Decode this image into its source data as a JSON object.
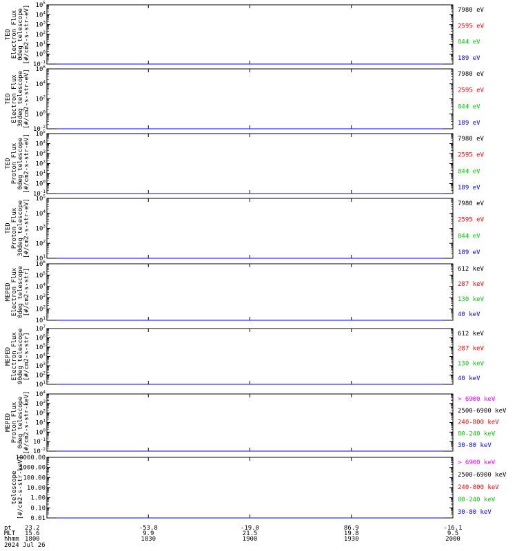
{
  "chart_data": [
    {
      "type": "line",
      "ylabel": [
        "TED",
        "Electron Flux",
        "0deg telescope",
        "[#/cm2-s-str-eV]"
      ],
      "y_scale": "log",
      "y_ticks": [
        "10^-1",
        "10^0",
        "10^1",
        "10^2",
        "10^3",
        "10^4",
        "10^5"
      ],
      "series": [
        {
          "name": "7980 eV",
          "color": "#000000",
          "values": [
            0,
            0,
            0,
            0,
            0,
            0,
            0,
            0,
            0,
            0,
            0,
            0,
            0,
            0,
            0,
            0,
            0,
            0,
            0,
            0
          ]
        },
        {
          "name": "2595 eV",
          "color": "#ff0000",
          "values": [
            0,
            0,
            0,
            0,
            0,
            0,
            0,
            0,
            0,
            0,
            0,
            0,
            0,
            0,
            0,
            0,
            0,
            0,
            0,
            0
          ]
        },
        {
          "name": "844 eV",
          "color": "#00cc00",
          "values": [
            0,
            0,
            0,
            0,
            0,
            0,
            0,
            0,
            0,
            0,
            0,
            0,
            0,
            0,
            0,
            0,
            0,
            0,
            0,
            0
          ]
        },
        {
          "name": "189 eV",
          "color": "#0000ff",
          "values": [
            0,
            0,
            0,
            0,
            0,
            0,
            0,
            0,
            0,
            0,
            0,
            0,
            0,
            0,
            0,
            0,
            0,
            0,
            0,
            0
          ]
        }
      ]
    },
    {
      "type": "line",
      "ylabel": [
        "TED",
        "Electron Flux",
        "30deg telescope",
        "[#/cm2-s-str-eV]"
      ],
      "y_scale": "log",
      "y_ticks": [
        "10^-2",
        "10^0",
        "10^2",
        "10^4",
        "10^6"
      ],
      "series": [
        {
          "name": "7980 eV",
          "color": "#000000",
          "values": [
            0,
            0,
            0,
            0,
            0,
            0,
            0,
            0,
            0,
            0,
            0,
            0,
            0,
            0,
            0,
            0,
            0,
            0,
            0,
            0
          ]
        },
        {
          "name": "2595 eV",
          "color": "#ff0000",
          "values": [
            0,
            0,
            0,
            0,
            0,
            0,
            0,
            0,
            0,
            0,
            0,
            0,
            0,
            0,
            0,
            0,
            0,
            0,
            0,
            0
          ]
        },
        {
          "name": "844 eV",
          "color": "#00cc00",
          "values": [
            0,
            0,
            0,
            0,
            0,
            0,
            0,
            0,
            0,
            0,
            0,
            0,
            0,
            0,
            0,
            0,
            0,
            0,
            0,
            0
          ]
        },
        {
          "name": "189 eV",
          "color": "#0000ff",
          "values": [
            0,
            0,
            0,
            0,
            0,
            0,
            0,
            0,
            0,
            0,
            0,
            0,
            0,
            0,
            0,
            0,
            0,
            0,
            0,
            0
          ]
        }
      ]
    },
    {
      "type": "line",
      "ylabel": [
        "TED",
        "Proton Flux",
        "0deg telescope",
        "[#/cm2-s-str-eV]"
      ],
      "y_scale": "log",
      "y_ticks": [
        "10^-1",
        "10^0",
        "10^1",
        "10^2",
        "10^3",
        "10^4",
        "10^5"
      ],
      "series": [
        {
          "name": "7980 eV",
          "color": "#000000",
          "values": [
            0,
            0,
            0,
            0,
            0,
            0,
            0,
            0,
            0,
            0,
            0,
            0,
            0,
            0,
            0,
            0,
            0,
            0,
            0,
            0
          ]
        },
        {
          "name": "2595 eV",
          "color": "#ff0000",
          "values": [
            0,
            0,
            0,
            0,
            0,
            0,
            0,
            0,
            0,
            0,
            0,
            0,
            0,
            0,
            0,
            0,
            0,
            0,
            0,
            0
          ]
        },
        {
          "name": "844 eV",
          "color": "#00cc00",
          "values": [
            0,
            0,
            0,
            0,
            0,
            0,
            0,
            0,
            0,
            0,
            0,
            0,
            0,
            0,
            0,
            0,
            0,
            0,
            0,
            0
          ]
        },
        {
          "name": "189 eV",
          "color": "#0000ff",
          "values": [
            0,
            0,
            0,
            0,
            0,
            0,
            0,
            0,
            0,
            0,
            0,
            0,
            0,
            0,
            0,
            0,
            0,
            0,
            0,
            0
          ]
        }
      ]
    },
    {
      "type": "line",
      "ylabel": [
        "TED",
        "Proton Flux",
        "30deg telescope",
        "[#/cm2-s-str-eV]"
      ],
      "y_scale": "log",
      "y_ticks": [
        "10^1",
        "10^2",
        "10^3",
        "10^4",
        "10^5"
      ],
      "series": [
        {
          "name": "7980 eV",
          "color": "#000000",
          "values": [
            0,
            0,
            0,
            0,
            0,
            0,
            0,
            0,
            0,
            0,
            0,
            0,
            0,
            0,
            0,
            0,
            0,
            0,
            0,
            0
          ]
        },
        {
          "name": "2595 eV",
          "color": "#ff0000",
          "values": [
            0,
            0,
            0,
            0,
            0,
            0,
            0,
            0,
            0,
            0,
            0,
            0,
            0,
            0,
            0,
            0,
            0,
            0,
            0,
            0
          ]
        },
        {
          "name": "844 eV",
          "color": "#00cc00",
          "values": [
            0,
            0,
            0,
            0,
            0,
            0,
            0,
            0,
            0,
            0,
            0,
            0,
            0,
            0,
            0,
            0,
            0,
            0,
            0,
            0
          ]
        },
        {
          "name": "189 eV",
          "color": "#0000ff",
          "values": [
            0,
            0,
            0,
            0,
            0,
            0,
            0,
            0,
            0,
            0,
            0,
            0,
            0,
            0,
            0,
            0,
            0,
            0,
            0,
            0
          ]
        }
      ]
    },
    {
      "type": "line",
      "ylabel": [
        "MEPED",
        "Electron Flux",
        "0deg telescope",
        "[#/cm2-s-str]"
      ],
      "y_scale": "log",
      "y_ticks": [
        "10^1",
        "10^2",
        "10^3",
        "10^4",
        "10^5",
        "10^6"
      ],
      "series": [
        {
          "name": "612 keV",
          "color": "#000000",
          "values": [
            0,
            0,
            0,
            0,
            0,
            0,
            0,
            0,
            0,
            0,
            0,
            0,
            0,
            0,
            0,
            0,
            0,
            0,
            0,
            0
          ]
        },
        {
          "name": "287 keV",
          "color": "#ff0000",
          "values": [
            0,
            0,
            0,
            0,
            0,
            0,
            0,
            0,
            0,
            0,
            0,
            0,
            0,
            0,
            0,
            0,
            0,
            0,
            0,
            0
          ]
        },
        {
          "name": "130 keV",
          "color": "#00cc00",
          "values": [
            0,
            0,
            0,
            0,
            0,
            0,
            0,
            0,
            0,
            0,
            0,
            0,
            0,
            0,
            0,
            0,
            0,
            0,
            0,
            0
          ]
        },
        {
          "name": "40 keV",
          "color": "#0000ff",
          "values": [
            0,
            0,
            0,
            0,
            0,
            0,
            0,
            0,
            0,
            0,
            0,
            0,
            0,
            0,
            0,
            0,
            0,
            0,
            0,
            0
          ]
        }
      ]
    },
    {
      "type": "line",
      "ylabel": [
        "MEPED",
        "Electron Flux",
        "90deg telescope",
        "[#/cm2-s-str]"
      ],
      "y_scale": "log",
      "y_ticks": [
        "10^1",
        "10^2",
        "10^3",
        "10^4",
        "10^5",
        "10^6",
        "10^7"
      ],
      "series": [
        {
          "name": "612 keV",
          "color": "#000000",
          "values": [
            0,
            0,
            0,
            0,
            0,
            0,
            0,
            0,
            0,
            0,
            0,
            0,
            0,
            0,
            0,
            0,
            0,
            0,
            0,
            0
          ]
        },
        {
          "name": "287 keV",
          "color": "#ff0000",
          "values": [
            0,
            0,
            0,
            0,
            0,
            0,
            0,
            0,
            0,
            0,
            0,
            0,
            0,
            0,
            0,
            0,
            0,
            0,
            0,
            0
          ]
        },
        {
          "name": "130 keV",
          "color": "#00cc00",
          "values": [
            0,
            0,
            0,
            0,
            0,
            0,
            0,
            0,
            0,
            0,
            0,
            0,
            0,
            0,
            0,
            0,
            0,
            0,
            0,
            0
          ]
        },
        {
          "name": "40 keV",
          "color": "#0000ff",
          "values": [
            0,
            0,
            0,
            0,
            0,
            0,
            0,
            0,
            0,
            0,
            0,
            0,
            0,
            0,
            0,
            0,
            0,
            0,
            0,
            0
          ]
        }
      ]
    },
    {
      "type": "line",
      "ylabel": [
        "MEPED",
        "Proton Flux",
        "0deg telescope",
        "[#/cm2-s-str-keV]"
      ],
      "y_scale": "log",
      "y_ticks": [
        "10^-2",
        "10^-1",
        "10^0",
        "10^1",
        "10^2",
        "10^3",
        "10^4"
      ],
      "series": [
        {
          "name": "> 6900 keV",
          "color": "#ff00ff",
          "values": [
            0,
            0,
            0,
            0,
            0,
            0,
            0,
            0,
            0,
            0,
            0,
            0,
            0,
            0,
            0,
            0,
            0,
            0,
            0,
            0
          ]
        },
        {
          "name": "2500-6900 keV",
          "color": "#000000",
          "values": [
            0,
            0,
            0,
            0,
            0,
            0,
            0,
            0,
            0,
            0,
            0,
            0,
            0,
            0,
            0,
            0,
            0,
            0,
            0,
            0
          ]
        },
        {
          "name": "240-800 keV",
          "color": "#ff0000",
          "values": [
            0,
            0,
            0,
            0,
            0,
            0,
            0,
            0,
            0,
            0,
            0,
            0,
            0,
            0,
            0,
            0,
            0,
            0,
            0,
            0
          ]
        },
        {
          "name": "80-240 keV",
          "color": "#00cc00",
          "values": [
            0,
            0,
            0,
            0,
            0,
            0,
            0,
            0,
            0,
            0,
            0,
            0,
            0,
            0,
            0,
            0,
            0,
            0,
            0,
            0
          ]
        },
        {
          "name": "30-80 keV",
          "color": "#0000ff",
          "values": [
            0,
            0,
            0,
            0,
            0,
            0,
            0,
            0,
            0,
            0,
            0,
            0,
            0,
            0,
            0,
            0,
            0,
            0,
            0,
            0
          ]
        }
      ]
    },
    {
      "type": "line",
      "ylabel": [
        "telescope",
        "[#/cm2-s-str-keV]"
      ],
      "y_scale": "log",
      "y_ticks": [
        "0.01",
        "0.10",
        "1.00",
        "10.00",
        "100.00",
        "1000.00",
        "10000.00"
      ],
      "series": [
        {
          "name": "> 6900 keV",
          "color": "#ff00ff",
          "values": [
            0,
            0,
            0,
            0,
            0,
            0,
            0,
            0,
            0,
            0,
            0,
            0,
            0,
            0,
            0,
            0,
            0,
            0,
            0,
            0
          ]
        },
        {
          "name": "2500-6900 keV",
          "color": "#000000",
          "values": [
            0,
            0,
            0,
            0,
            0,
            0,
            0,
            0,
            0,
            0,
            0,
            0,
            0,
            0,
            0,
            0,
            0,
            0,
            0,
            0
          ]
        },
        {
          "name": "240-800 keV",
          "color": "#ff0000",
          "values": [
            0,
            0,
            0,
            0,
            0,
            0,
            0,
            0,
            0,
            0,
            0,
            0,
            0,
            0,
            0,
            0,
            0,
            0,
            0,
            0
          ]
        },
        {
          "name": "80-240 keV",
          "color": "#00cc00",
          "values": [
            0,
            0,
            0,
            0,
            0,
            0,
            0,
            0,
            0,
            0,
            0,
            0,
            0,
            0,
            0,
            0,
            0,
            0,
            0,
            0
          ]
        },
        {
          "name": "30-80 keV",
          "color": "#0000ff",
          "values": [
            0,
            0,
            0,
            0,
            0,
            0,
            0,
            0,
            0,
            0,
            0,
            0,
            0,
            0,
            0,
            0,
            0,
            0,
            0,
            0
          ]
        }
      ]
    }
  ],
  "x_axis": {
    "row_labels": [
      "pt",
      "MLT",
      "hhmm"
    ],
    "columns": [
      [
        "23.2",
        "15.6",
        "1800"
      ],
      [
        "-53.8",
        "9.9",
        "1830"
      ],
      [
        "-19.0",
        "21.5",
        "1900"
      ],
      [
        "86.9",
        "19.8",
        "1930"
      ],
      [
        "-16.1",
        "9.5",
        "2000"
      ]
    ],
    "date": "2024 Jul 26"
  }
}
